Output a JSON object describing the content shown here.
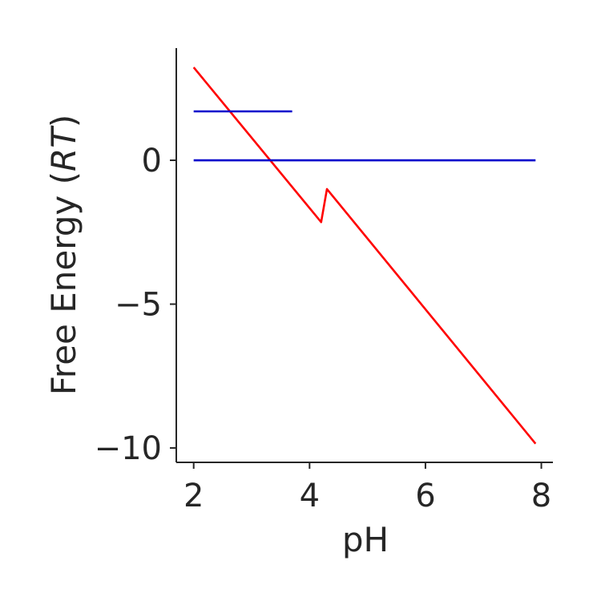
{
  "chart_data": {
    "type": "line",
    "title": "",
    "xlabel": "pH",
    "ylabel_main": "Free Energy (",
    "ylabel_italic": "RT",
    "ylabel_close": ")",
    "xlim": [
      1.7,
      8.2
    ],
    "ylim": [
      -10.5,
      3.9
    ],
    "xticks": [
      2,
      4,
      6,
      8
    ],
    "xtick_labels": [
      "2",
      "4",
      "6",
      "8"
    ],
    "yticks": [
      -10,
      -5,
      0
    ],
    "ytick_labels": [
      "−10",
      "−5",
      "0"
    ],
    "grid": false,
    "series": [
      {
        "color": "#ff0000",
        "x": [
          2.0,
          4.2,
          4.3,
          7.9
        ],
        "y": [
          3.23,
          -2.15,
          -1.0,
          -9.85
        ]
      },
      {
        "color": "#0000cc",
        "x": [
          2.0,
          3.7
        ],
        "y": [
          1.7,
          1.7
        ]
      },
      {
        "color": "#0000cc",
        "x": [
          2.0,
          7.9
        ],
        "y": [
          0.0,
          0.0
        ]
      }
    ]
  }
}
